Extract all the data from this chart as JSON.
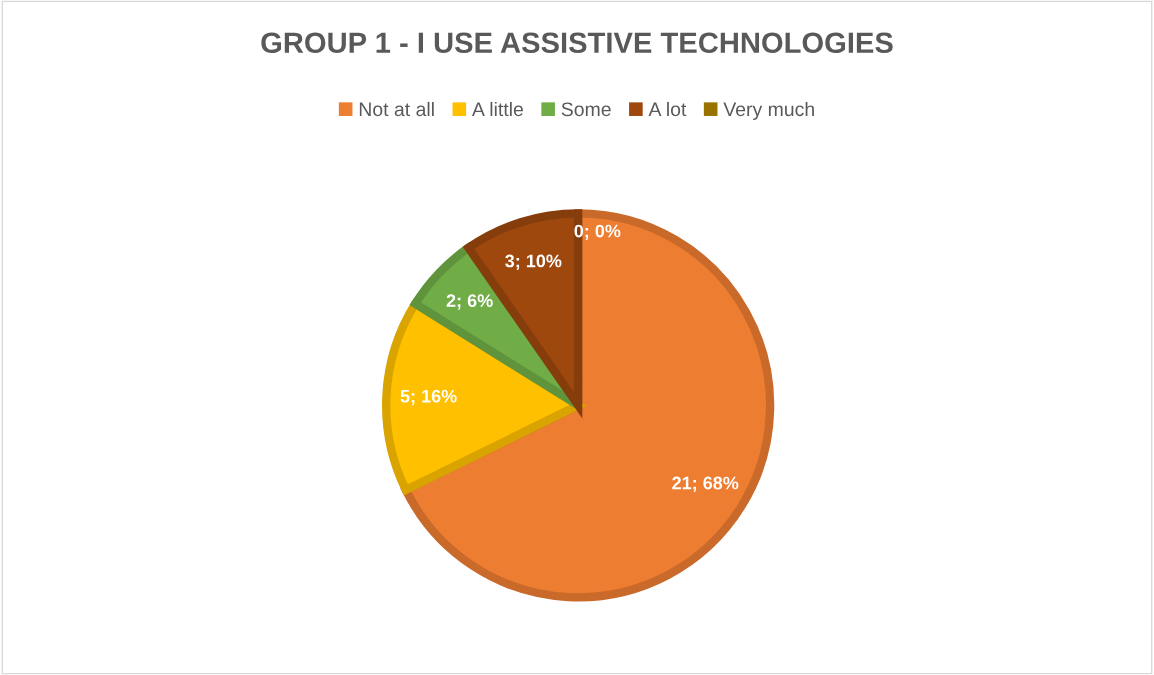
{
  "chart_data": {
    "type": "pie",
    "title": "GROUP 1 - I USE ASSISTIVE TECHNOLOGIES",
    "categories": [
      "Not at all",
      "A little",
      "Some",
      "A lot",
      "Very much"
    ],
    "values": [
      21,
      5,
      2,
      3,
      0
    ],
    "colors": [
      "#ed7d31",
      "#ffc000",
      "#70ad47",
      "#9e480e",
      "#997300"
    ],
    "value_labels": [
      "21; 68%",
      "5; 16%",
      "2; 6%",
      "3; 10%",
      "0; 0%"
    ],
    "legend": "top"
  }
}
